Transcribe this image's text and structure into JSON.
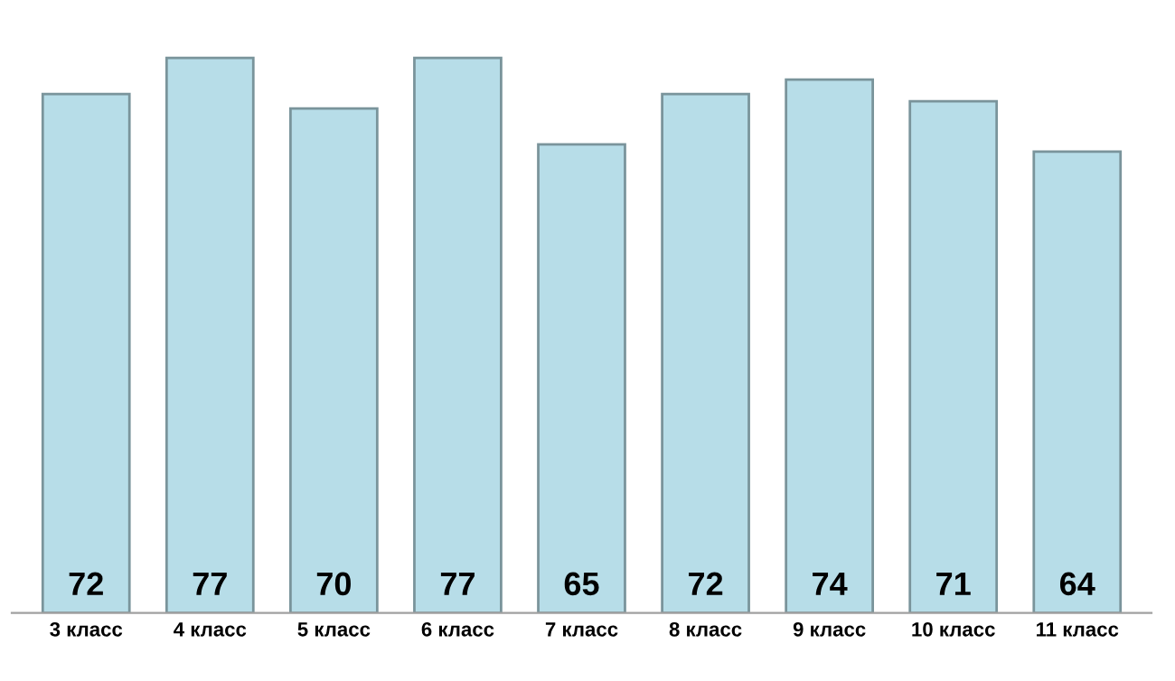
{
  "chart_data": {
    "type": "bar",
    "categories": [
      "3 класс",
      "4 класс",
      "5 класс",
      "6 класс",
      "7 класс",
      "8 класс",
      "9 класс",
      "10 класс",
      "11 класс"
    ],
    "values": [
      72,
      77,
      70,
      77,
      65,
      72,
      74,
      71,
      64
    ],
    "color": "#b7dde8",
    "data_labels": true,
    "tick_labels": "x",
    "grid": false,
    "legend": false
  }
}
